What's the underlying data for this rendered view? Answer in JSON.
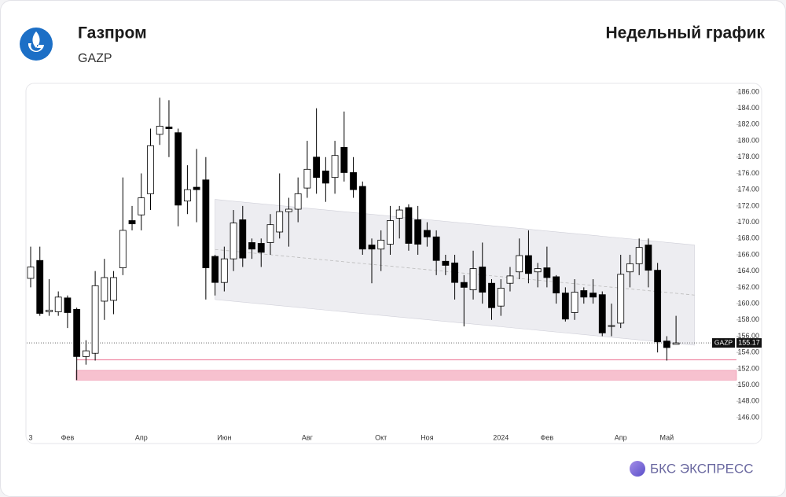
{
  "chart_data": {
    "type": "candlestick",
    "title": "Газпром",
    "subtitle": "GAZP",
    "period": "Недельный график",
    "brand": "БКС ЭКСПРЕСС",
    "categories": [
      "3",
      null,
      null,
      null,
      "Фев",
      null,
      null,
      null,
      null,
      null,
      null,
      null,
      "Апр",
      null,
      null,
      null,
      null,
      null,
      null,
      null,
      null,
      "Июн",
      null,
      null,
      null,
      null,
      null,
      null,
      null,
      null,
      "Авг",
      null,
      null,
      null,
      null,
      null,
      null,
      null,
      "Окт",
      null,
      null,
      null,
      null,
      "Ноя",
      null,
      null,
      null,
      null,
      null,
      null,
      null,
      "2024",
      null,
      null,
      null,
      null,
      "Фев",
      null,
      null,
      null,
      null,
      null,
      null,
      null,
      "Апр",
      null,
      null,
      null,
      null,
      "Май",
      null
    ],
    "open": [
      163.1,
      165.3,
      159.0,
      159.0,
      160.7,
      159.3,
      153.5,
      153.9,
      160.3,
      160.4,
      164.4,
      170.2,
      170.9,
      173.5,
      180.8,
      181.7,
      181.0,
      172.6,
      174.3,
      175.2,
      165.8,
      162.6,
      165.5,
      170.3,
      167.5,
      167.4,
      167.5,
      168.8,
      171.3,
      171.6,
      174.2,
      178.0,
      176.3,
      175.5,
      179.2,
      176.1,
      174.4,
      167.2,
      166.7,
      167.3,
      170.5,
      171.8,
      170.3,
      169.0,
      168.2,
      165.2,
      165.0,
      162.6,
      161.7,
      164.5,
      162.5,
      159.7,
      162.5,
      163.9,
      165.9,
      163.9,
      164.4,
      163.3,
      161.3,
      158.9,
      161.6,
      161.3,
      161.1,
      157.2,
      157.6,
      163.9,
      164.9,
      167.2,
      164.1,
      155.4,
      155.0
    ],
    "high": [
      167,
      167,
      163,
      161.5,
      161,
      159.5,
      155.5,
      164,
      165.5,
      164,
      175.5,
      172,
      176,
      181.5,
      185.3,
      185,
      181.5,
      177,
      179,
      178,
      166,
      167,
      171.5,
      172,
      168,
      168,
      171,
      176,
      173,
      175.5,
      180,
      184,
      178,
      180,
      183.6,
      178,
      175,
      168,
      169,
      172,
      172,
      172.2,
      172,
      170,
      169,
      166,
      166,
      163.5,
      166.5,
      167.5,
      163,
      163,
      164.5,
      168,
      169,
      165,
      167,
      163.5,
      162,
      163,
      162,
      163,
      161.5,
      160,
      166,
      166,
      168,
      168,
      165,
      156,
      158.5
    ],
    "low": [
      162,
      158.5,
      158.5,
      158.5,
      157,
      150.6,
      152.5,
      153,
      158,
      158.7,
      163.5,
      169,
      169,
      171.5,
      179.5,
      178,
      169.5,
      171,
      170,
      160.5,
      161,
      161.5,
      164,
      164.5,
      165.5,
      164.5,
      166,
      168,
      167,
      170,
      173,
      173.5,
      172.5,
      173.5,
      175,
      173,
      166,
      162.5,
      164,
      166,
      168,
      166.5,
      166,
      167,
      163.5,
      163.5,
      160.5,
      157.2,
      160.5,
      160,
      158,
      158.5,
      161.5,
      163,
      162.5,
      162,
      162,
      160,
      157.8,
      158,
      160,
      160,
      156,
      156,
      157,
      162,
      163.5,
      162,
      154,
      153,
      155
    ],
    "close": [
      164.5,
      158.8,
      159.2,
      160.8,
      158.9,
      153.5,
      154.2,
      162.2,
      163.2,
      163.2,
      169.0,
      169.8,
      173.0,
      179.4,
      181.8,
      181.5,
      172.1,
      174.0,
      174.0,
      164.4,
      162.6,
      165.5,
      169.9,
      165.6,
      166.7,
      166.3,
      169.7,
      171.3,
      171.6,
      173.5,
      176.5,
      175.5,
      174.8,
      178.2,
      176.1,
      174.0,
      166.7,
      166.7,
      167.8,
      170.2,
      171.5,
      167.4,
      167.3,
      168.2,
      165.3,
      164.7,
      162.6,
      162.0,
      164.3,
      161.4,
      159.5,
      161.9,
      163.4,
      165.9,
      163.7,
      164.3,
      163.2,
      161.3,
      158.1,
      161.4,
      160.8,
      160.8,
      156.4,
      157.3,
      163.6,
      164.9,
      166.9,
      164.1,
      155.3,
      154.6,
      155.17
    ],
    "up_color": "#ffffff",
    "down_color": "#000000",
    "ylim": [
      144.55,
      187.06
    ],
    "yticks": [
      {
        "value": 146,
        "label": "146.00"
      },
      {
        "value": 148,
        "label": "148.00"
      },
      {
        "value": 150,
        "label": "150.00"
      },
      {
        "value": 152,
        "label": "152.00"
      },
      {
        "value": 154,
        "label": "154.00"
      },
      {
        "value": 156,
        "label": "156.00"
      },
      {
        "value": 158,
        "label": "158.00"
      },
      {
        "value": 160,
        "label": "160.00"
      },
      {
        "value": 162,
        "label": "162.00"
      },
      {
        "value": 164,
        "label": "164.00"
      },
      {
        "value": 166,
        "label": "166.00"
      },
      {
        "value": 168,
        "label": "168.00"
      },
      {
        "value": 170,
        "label": "170.00"
      },
      {
        "value": 172,
        "label": "172.00"
      },
      {
        "value": 174,
        "label": "174.00"
      },
      {
        "value": 176,
        "label": "176.00"
      },
      {
        "value": 178,
        "label": "178.00"
      },
      {
        "value": 180,
        "label": "180.00"
      },
      {
        "value": 182,
        "label": "182.00"
      },
      {
        "value": 184,
        "label": "184.00"
      },
      {
        "value": 186,
        "label": "186.00"
      }
    ],
    "channel": {
      "x": [
        20,
        72
      ],
      "upper": [
        172.8,
        167.2
      ],
      "lower": [
        160.5,
        154.9
      ],
      "color": "#e9e9ee"
    },
    "zone": {
      "from": 150.6,
      "to": 151.8,
      "start": 5,
      "color": "#f7c1cf"
    },
    "level": {
      "value": 153.1,
      "start": 5,
      "color": "#f08ca6"
    },
    "last_price": {
      "label": "GAZP",
      "value": 155.17
    }
  }
}
